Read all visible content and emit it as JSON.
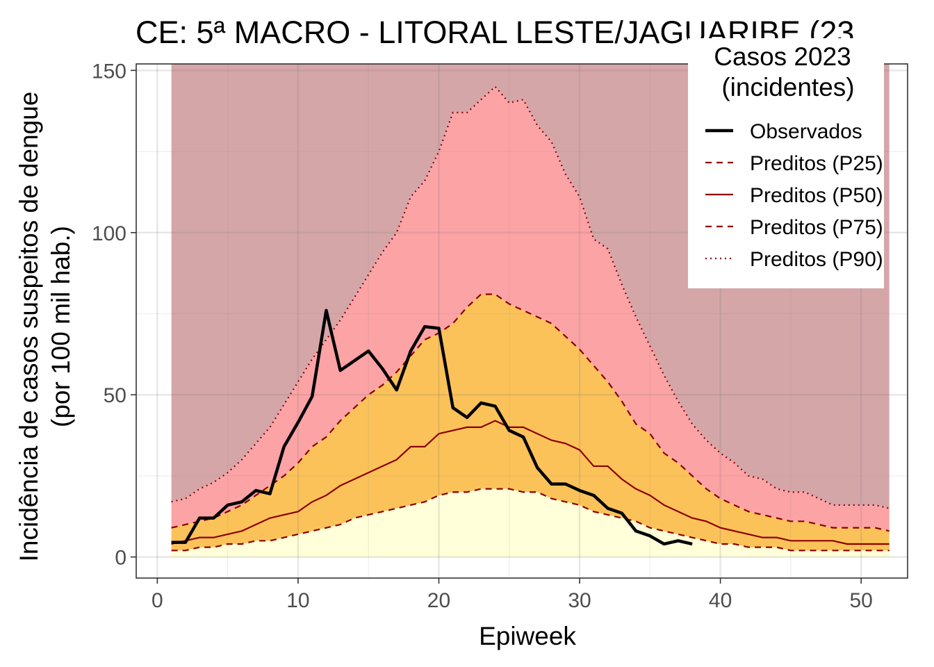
{
  "chart_data": {
    "type": "area",
    "title": "CE: 5ª MACRO - LITORAL LESTE/JAGUARIBE (23",
    "xlabel": "Epiweek",
    "ylabel_line1": "Incidência de casos suspeitos de dengue",
    "ylabel_line2": "(por 100 mil hab.)",
    "xlim": [
      -1.5,
      53.3
    ],
    "ylim": [
      -6.5,
      152
    ],
    "x_ticks": [
      0,
      10,
      20,
      30,
      40,
      50
    ],
    "y_ticks": [
      0,
      50,
      100,
      150
    ],
    "grid": true,
    "legend": {
      "title_line1": "Casos 2023",
      "title_line2": "(incidentes)",
      "position": "top-right",
      "entries": [
        "Observados",
        "Preditos (P25)",
        "Preditos (P50)",
        "Preditos (P75)",
        "Preditos (P90)"
      ]
    },
    "colors": {
      "zone_low": "#ffffd9",
      "zone_p25_p75": "#fcc25a",
      "zone_p75_p90": "#fca3a5",
      "zone_high": "#d5a6a8",
      "predicted_line": "#8b0000",
      "observed_line": "#000000",
      "grid_minor": "#f2f2f2",
      "grid_major": "#e6e6e6",
      "axis_text": "#4d4d4d"
    },
    "x": [
      1,
      2,
      3,
      4,
      5,
      6,
      7,
      8,
      9,
      10,
      11,
      12,
      13,
      14,
      15,
      16,
      17,
      18,
      19,
      20,
      21,
      22,
      23,
      24,
      25,
      26,
      27,
      28,
      29,
      30,
      31,
      32,
      33,
      34,
      35,
      36,
      37,
      38,
      39,
      40,
      41,
      42,
      43,
      44,
      45,
      46,
      47,
      48,
      49,
      50,
      51,
      52
    ],
    "series": [
      {
        "name": "Preditos (P25)",
        "values": [
          2,
          2,
          3,
          3,
          4,
          4,
          5,
          5,
          6,
          7,
          8,
          9,
          10,
          12,
          13,
          14,
          15,
          16,
          17,
          19,
          20,
          20,
          21,
          21,
          21,
          20,
          20,
          18,
          17,
          16,
          14,
          13,
          12,
          11,
          9,
          8,
          7,
          6,
          5,
          4,
          4,
          3,
          3,
          3,
          2,
          2,
          2,
          2,
          2,
          2,
          2,
          2
        ]
      },
      {
        "name": "Preditos (P50)",
        "values": [
          4,
          5,
          6,
          6,
          7,
          8,
          10,
          12,
          13,
          14,
          17,
          19,
          22,
          24,
          26,
          28,
          30,
          34,
          34,
          38,
          39,
          40,
          40,
          42,
          40,
          40,
          38,
          36,
          35,
          33,
          28,
          28,
          24,
          21,
          19,
          16,
          14,
          12,
          11,
          9,
          8,
          7,
          6,
          6,
          5,
          5,
          5,
          5,
          4,
          4,
          4,
          4
        ]
      },
      {
        "name": "Preditos (P75)",
        "values": [
          9,
          10,
          11,
          12,
          14,
          16,
          19,
          22,
          25,
          29,
          34,
          37,
          42,
          46,
          50,
          53,
          57,
          62,
          67,
          69,
          72,
          77,
          81,
          81,
          78,
          76,
          74,
          72,
          68,
          64,
          59,
          54,
          48,
          41,
          38,
          32,
          29,
          25,
          21,
          18,
          16,
          14,
          13,
          12,
          11,
          11,
          10,
          9,
          9,
          9,
          9,
          8
        ]
      },
      {
        "name": "Preditos (P90)",
        "values": [
          17,
          18,
          21,
          23,
          26,
          30,
          35,
          40,
          47,
          54,
          61,
          67,
          73,
          80,
          87,
          94,
          100,
          111,
          116,
          125,
          137,
          137,
          141,
          145,
          140,
          141,
          133,
          128,
          118,
          111,
          98,
          95,
          84,
          74,
          65,
          56,
          48,
          41,
          36,
          32,
          29,
          25,
          24,
          21,
          20,
          20,
          18,
          16,
          16,
          16,
          16,
          15
        ]
      },
      {
        "name": "Observados",
        "x": [
          1,
          2,
          3,
          4,
          5,
          6,
          7,
          8,
          9,
          10,
          11,
          12,
          13,
          14,
          15,
          16,
          17,
          18,
          19,
          20,
          21,
          22,
          23,
          24,
          25,
          26,
          27,
          28,
          29,
          30,
          31,
          32,
          33,
          34,
          35,
          36,
          37,
          38
        ],
        "values": [
          4.5,
          4.5,
          12,
          12,
          16,
          17,
          20.5,
          19.5,
          34,
          41.5,
          49.5,
          76,
          57.5,
          60.5,
          63.5,
          58,
          51.5,
          63.5,
          71,
          70.5,
          46,
          43,
          47.5,
          46.5,
          39,
          37,
          27.5,
          22.5,
          22.5,
          20.5,
          19,
          15,
          13.5,
          8,
          6.5,
          4,
          5,
          4
        ]
      }
    ]
  }
}
